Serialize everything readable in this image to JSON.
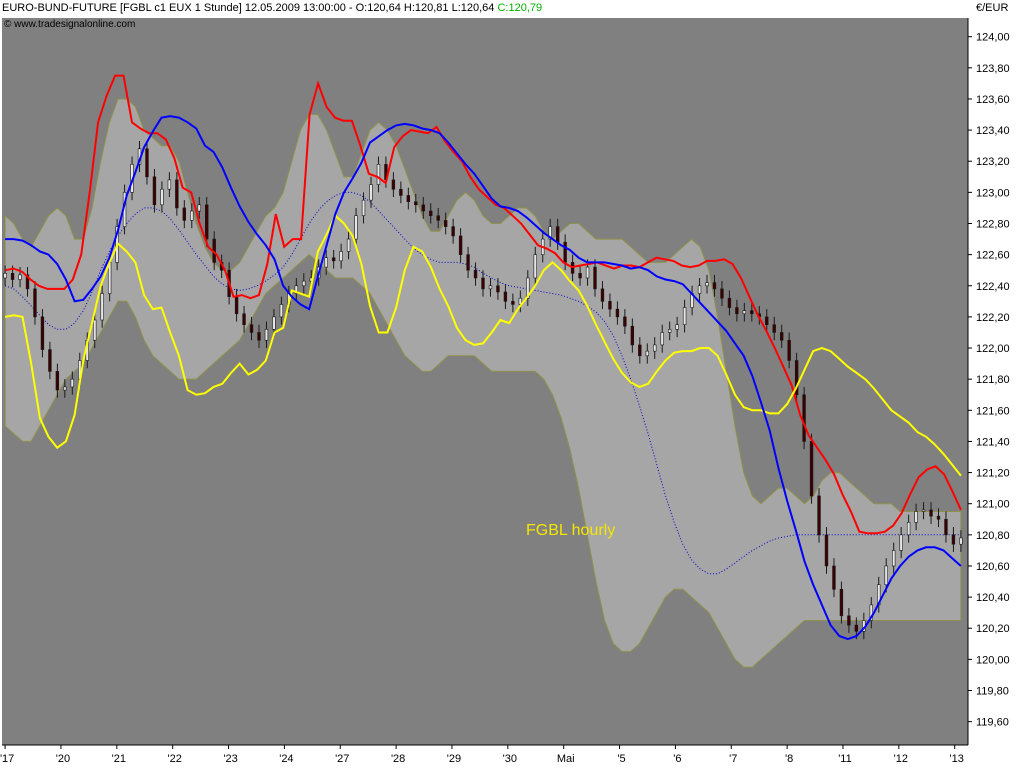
{
  "header": {
    "instrument": "EURO-BUND-FUTURE",
    "details": "[FGBL c1 EUX  1 Stunde] 12.05.2009 13:00:00 - O:120,64 H:120,81 L:120,64",
    "close_label": "C:120,79",
    "credit": "© www.tradesignalonline.com",
    "unit": "€/EUR"
  },
  "annotation": "FGBL hourly",
  "colors": {
    "plot_bg": "#808080",
    "band_fill": "#a6a6a6",
    "band_edge": "#909048",
    "upper_channel": "#ff0000",
    "mid_line": "#0000ff",
    "lower_channel": "#ffff00",
    "dotted_mid": "#0000cc",
    "candle_up": "#e6e6e6",
    "candle_down": "#3a0000",
    "annotation": "#f5e600",
    "close_value": "#00b000"
  },
  "chart_data": {
    "type": "line",
    "title": "FGBL hourly",
    "ylabel": "€/EUR",
    "ylim": [
      119.45,
      124.12
    ],
    "y_ticks": [
      "124,00",
      "123,80",
      "123,60",
      "123,40",
      "123,20",
      "123,00",
      "122,80",
      "122,60",
      "122,40",
      "122,20",
      "122,00",
      "121,80",
      "121,60",
      "121,40",
      "121,20",
      "121,00",
      "120,80",
      "120,60",
      "120,40",
      "120,20",
      "120,00",
      "119,80",
      "119,60"
    ],
    "y_tick_values": [
      124.0,
      123.8,
      123.6,
      123.4,
      123.2,
      123.0,
      122.8,
      122.6,
      122.4,
      122.2,
      122.0,
      121.8,
      121.6,
      121.4,
      121.2,
      121.0,
      120.8,
      120.6,
      120.4,
      120.2,
      120.0,
      119.8,
      119.6
    ],
    "x_ticks": [
      "17",
      "20",
      "21",
      "22",
      "23",
      "24",
      "27",
      "28",
      "29",
      "30",
      "Mai",
      "5",
      "6",
      "7",
      "8",
      "11",
      "12",
      "13"
    ],
    "x_tick_bars": [
      0,
      9,
      18,
      27,
      36,
      45,
      54,
      63,
      72,
      81,
      90,
      99,
      108,
      117,
      126,
      135,
      144,
      153
    ],
    "x_tick_show_apostrophe": [
      true,
      true,
      true,
      true,
      true,
      true,
      true,
      true,
      true,
      true,
      false,
      true,
      true,
      true,
      true,
      true,
      true,
      true
    ],
    "n_bars": 155,
    "series": [
      {
        "key": "upper",
        "values": [
          122.5,
          122.51,
          122.49,
          122.44,
          122.4,
          122.38,
          122.38,
          122.38,
          122.44,
          122.6,
          123.0,
          123.45,
          123.62,
          123.75,
          123.75,
          123.45,
          123.41,
          123.38,
          123.38,
          123.34,
          123.22,
          123.03,
          123.0,
          122.8,
          122.65,
          122.6,
          122.5,
          122.33,
          122.34,
          122.32,
          122.34,
          122.54,
          122.86,
          122.65,
          122.7,
          122.7,
          123.5,
          123.7,
          123.55,
          123.48,
          123.46,
          123.46,
          123.3,
          123.12,
          123.1,
          123.06,
          123.29,
          123.36,
          123.4,
          123.39,
          123.38,
          123.42,
          123.33,
          123.26,
          123.2,
          123.1,
          123.02,
          122.97,
          122.92,
          122.9,
          122.85,
          122.8,
          122.73,
          122.66,
          122.64,
          122.61,
          122.55,
          122.52,
          122.53,
          122.54,
          122.55,
          122.53,
          122.51,
          122.53,
          122.53,
          122.52,
          122.55,
          122.58,
          122.57,
          122.56,
          122.53,
          122.52,
          122.53,
          122.56,
          122.56,
          122.57,
          122.54,
          122.45,
          122.33,
          122.21,
          122.11,
          122.0,
          121.88,
          121.76,
          121.57,
          121.44,
          121.36,
          121.28,
          121.19,
          121.06,
          120.95,
          120.82,
          120.81,
          120.81,
          120.82,
          120.86,
          120.94,
          121.06,
          121.17,
          121.22,
          121.24,
          121.19,
          121.08,
          120.96
        ]
      },
      {
        "key": "mid",
        "values": [
          122.7,
          122.7,
          122.69,
          122.66,
          122.62,
          122.6,
          122.54,
          122.44,
          122.3,
          122.31,
          122.38,
          122.46,
          122.58,
          122.76,
          122.98,
          123.13,
          123.29,
          123.39,
          123.48,
          123.49,
          123.48,
          123.45,
          123.41,
          123.3,
          123.26,
          123.16,
          123.03,
          122.91,
          122.81,
          122.73,
          122.66,
          122.57,
          122.4,
          122.33,
          122.28,
          122.25,
          122.46,
          122.66,
          122.86,
          123.0,
          123.09,
          123.19,
          123.32,
          123.36,
          123.4,
          123.43,
          123.44,
          123.43,
          123.41,
          123.4,
          123.38,
          123.32,
          123.25,
          123.18,
          123.12,
          123.04,
          122.96,
          122.91,
          122.9,
          122.88,
          122.84,
          122.79,
          122.74,
          122.7,
          122.66,
          122.63,
          122.58,
          122.55,
          122.55,
          122.55,
          122.54,
          122.53,
          122.51,
          122.52,
          122.5,
          122.46,
          122.44,
          122.43,
          122.41,
          122.35,
          122.29,
          122.23,
          122.17,
          122.11,
          122.03,
          121.95,
          121.82,
          121.65,
          121.47,
          121.23,
          121.02,
          120.83,
          120.63,
          120.48,
          120.35,
          120.22,
          120.15,
          120.13,
          120.15,
          120.21,
          120.3,
          120.41,
          120.52,
          120.6,
          120.66,
          120.7,
          120.72,
          120.72,
          120.7,
          120.65,
          120.6
        ]
      },
      {
        "key": "lower",
        "values": [
          122.2,
          122.21,
          122.2,
          121.9,
          121.55,
          121.43,
          121.36,
          121.4,
          121.57,
          121.92,
          122.16,
          122.4,
          122.55,
          122.67,
          122.62,
          122.55,
          122.34,
          122.25,
          122.26,
          122.1,
          121.95,
          121.73,
          121.7,
          121.71,
          121.75,
          121.77,
          121.84,
          121.9,
          121.83,
          121.86,
          121.92,
          122.1,
          122.13,
          122.37,
          122.35,
          122.33,
          122.62,
          122.73,
          122.85,
          122.8,
          122.72,
          122.54,
          122.27,
          122.1,
          122.1,
          122.26,
          122.5,
          122.65,
          122.62,
          122.52,
          122.38,
          122.27,
          122.13,
          122.05,
          122.02,
          122.03,
          122.1,
          122.18,
          122.16,
          122.25,
          122.32,
          122.4,
          122.5,
          122.55,
          122.5,
          122.43,
          122.37,
          122.27,
          122.15,
          122.04,
          121.93,
          121.84,
          121.78,
          121.75,
          121.77,
          121.85,
          121.92,
          121.97,
          121.98,
          121.98,
          122.0,
          122.0,
          121.95,
          121.83,
          121.7,
          121.62,
          121.6,
          121.6,
          121.58,
          121.58,
          121.64,
          121.74,
          121.86,
          121.98,
          122.0,
          121.98,
          121.93,
          121.88,
          121.84,
          121.8,
          121.74,
          121.67,
          121.6,
          121.56,
          121.52,
          121.46,
          121.43,
          121.38,
          121.32,
          121.25,
          121.18
        ]
      },
      {
        "key": "bb_upper",
        "values": [
          122.85,
          122.8,
          122.7,
          122.65,
          122.75,
          122.85,
          122.9,
          122.85,
          122.7,
          122.7,
          122.9,
          123.2,
          123.45,
          123.6,
          123.6,
          123.55,
          123.4,
          123.35,
          123.3,
          123.3,
          123.2,
          123.0,
          122.8,
          122.65,
          122.55,
          122.5,
          122.5,
          122.55,
          122.65,
          122.75,
          122.85,
          122.9,
          123.0,
          123.2,
          123.4,
          123.5,
          123.5,
          123.4,
          123.25,
          123.1,
          123.1,
          123.25,
          123.4,
          123.45,
          123.4,
          123.3,
          123.15,
          123.0,
          122.85,
          122.75,
          122.75,
          122.85,
          122.95,
          123.0,
          122.95,
          122.85,
          122.8,
          122.8,
          122.85,
          122.9,
          122.9,
          122.85,
          122.75,
          122.7,
          122.75,
          122.8,
          122.8,
          122.75,
          122.7,
          122.7,
          122.7,
          122.7,
          122.65,
          122.6,
          122.55,
          122.55,
          122.55,
          122.6,
          122.65,
          122.7,
          122.65,
          122.5,
          122.2,
          121.85,
          121.5,
          121.2,
          121.05,
          121.0,
          121.05,
          121.1,
          121.1,
          121.05,
          121.0,
          121.05,
          121.15,
          121.2,
          121.2,
          121.15,
          121.1,
          121.05,
          121.0,
          121.0,
          121.0,
          120.95,
          120.95,
          120.95,
          120.95,
          120.95,
          120.95,
          120.95,
          120.95
        ]
      },
      {
        "key": "bb_lower",
        "values": [
          121.5,
          121.45,
          121.4,
          121.4,
          121.5,
          121.6,
          121.7,
          121.8,
          121.85,
          121.9,
          122.0,
          122.1,
          122.2,
          122.3,
          122.3,
          122.2,
          122.05,
          121.95,
          121.9,
          121.85,
          121.8,
          121.8,
          121.8,
          121.85,
          121.9,
          121.95,
          122.0,
          122.05,
          122.15,
          122.25,
          122.35,
          122.4,
          122.45,
          122.5,
          122.55,
          122.6,
          122.55,
          122.5,
          122.45,
          122.45,
          122.45,
          122.4,
          122.35,
          122.25,
          122.15,
          122.05,
          121.95,
          121.9,
          121.85,
          121.85,
          121.9,
          121.95,
          121.95,
          121.95,
          121.95,
          121.9,
          121.85,
          121.85,
          121.85,
          121.85,
          121.85,
          121.85,
          121.8,
          121.7,
          121.55,
          121.35,
          121.1,
          120.8,
          120.5,
          120.25,
          120.1,
          120.05,
          120.05,
          120.1,
          120.2,
          120.3,
          120.4,
          120.45,
          120.45,
          120.4,
          120.35,
          120.3,
          120.2,
          120.1,
          120.0,
          119.95,
          119.95,
          120.0,
          120.05,
          120.1,
          120.15,
          120.2,
          120.25,
          120.25,
          120.25,
          120.25,
          120.25,
          120.25,
          120.25,
          120.25,
          120.25,
          120.25,
          120.25,
          120.25,
          120.25,
          120.25,
          120.25,
          120.25,
          120.25,
          120.25,
          120.25
        ]
      },
      {
        "key": "dotted",
        "values": [
          122.4,
          122.38,
          122.33,
          122.27,
          122.21,
          122.15,
          122.12,
          122.12,
          122.16,
          122.24,
          122.36,
          122.5,
          122.62,
          122.72,
          122.8,
          122.86,
          122.9,
          122.9,
          122.88,
          122.83,
          122.76,
          122.68,
          122.6,
          122.53,
          122.46,
          122.41,
          122.38,
          122.37,
          122.38,
          122.4,
          122.43,
          122.47,
          122.52,
          122.6,
          122.7,
          122.8,
          122.88,
          122.94,
          122.98,
          123.0,
          123.0,
          122.98,
          122.94,
          122.88,
          122.82,
          122.76,
          122.7,
          122.64,
          122.6,
          122.57,
          122.55,
          122.55,
          122.55,
          122.54,
          122.52,
          122.48,
          122.45,
          122.42,
          122.4,
          122.39,
          122.38,
          122.37,
          122.36,
          122.35,
          122.34,
          122.32,
          122.3,
          122.27,
          122.23,
          122.17,
          122.08,
          121.95,
          121.8,
          121.63,
          121.45,
          121.25,
          121.05,
          120.88,
          120.74,
          120.64,
          120.58,
          120.55,
          120.55,
          120.58,
          120.62,
          120.66,
          120.7,
          120.73,
          120.76,
          120.78,
          120.79,
          120.8,
          120.8,
          120.8,
          120.8,
          120.8,
          120.8,
          120.8,
          120.8,
          120.8,
          120.8,
          120.8,
          120.8,
          120.8,
          120.8,
          120.8,
          120.8,
          120.8,
          120.8,
          120.8,
          120.8
        ]
      }
    ],
    "candles_close": [
      122.48,
      122.44,
      122.47,
      122.38,
      122.2,
      121.99,
      121.85,
      121.73,
      121.75,
      121.8,
      121.92,
      122.05,
      122.18,
      122.35,
      122.55,
      122.78,
      123.0,
      123.18,
      123.28,
      123.1,
      122.92,
      123.02,
      123.08,
      122.9,
      122.82,
      122.88,
      122.92,
      122.7,
      122.55,
      122.5,
      122.33,
      122.22,
      122.15,
      122.1,
      122.05,
      122.12,
      122.2,
      122.28,
      122.35,
      122.4,
      122.43,
      122.45,
      122.52,
      122.58,
      122.56,
      122.62,
      122.7,
      122.85,
      122.95,
      123.05,
      123.18,
      123.08,
      123.02,
      122.98,
      122.94,
      122.92,
      122.88,
      122.85,
      122.82,
      122.78,
      122.72,
      122.6,
      122.5,
      122.45,
      122.38,
      122.4,
      122.36,
      122.3,
      122.28,
      122.32,
      122.45,
      122.6,
      122.7,
      122.78,
      122.68,
      122.55,
      122.48,
      122.45,
      122.52,
      122.38,
      122.3,
      122.25,
      122.2,
      122.14,
      122.02,
      121.95,
      121.98,
      122.02,
      122.1,
      122.12,
      122.15,
      122.26,
      122.35,
      122.4,
      122.42,
      122.38,
      122.32,
      122.26,
      122.22,
      122.24,
      122.22,
      122.2,
      122.15,
      122.1,
      122.05,
      121.92,
      121.7,
      121.4,
      121.05,
      120.8,
      120.6,
      120.45,
      120.28,
      120.22,
      120.18,
      120.25,
      120.35,
      120.48,
      120.6,
      120.7,
      120.8,
      120.88,
      120.95,
      120.96,
      120.92,
      120.9,
      120.8,
      120.74,
      120.78
    ]
  }
}
